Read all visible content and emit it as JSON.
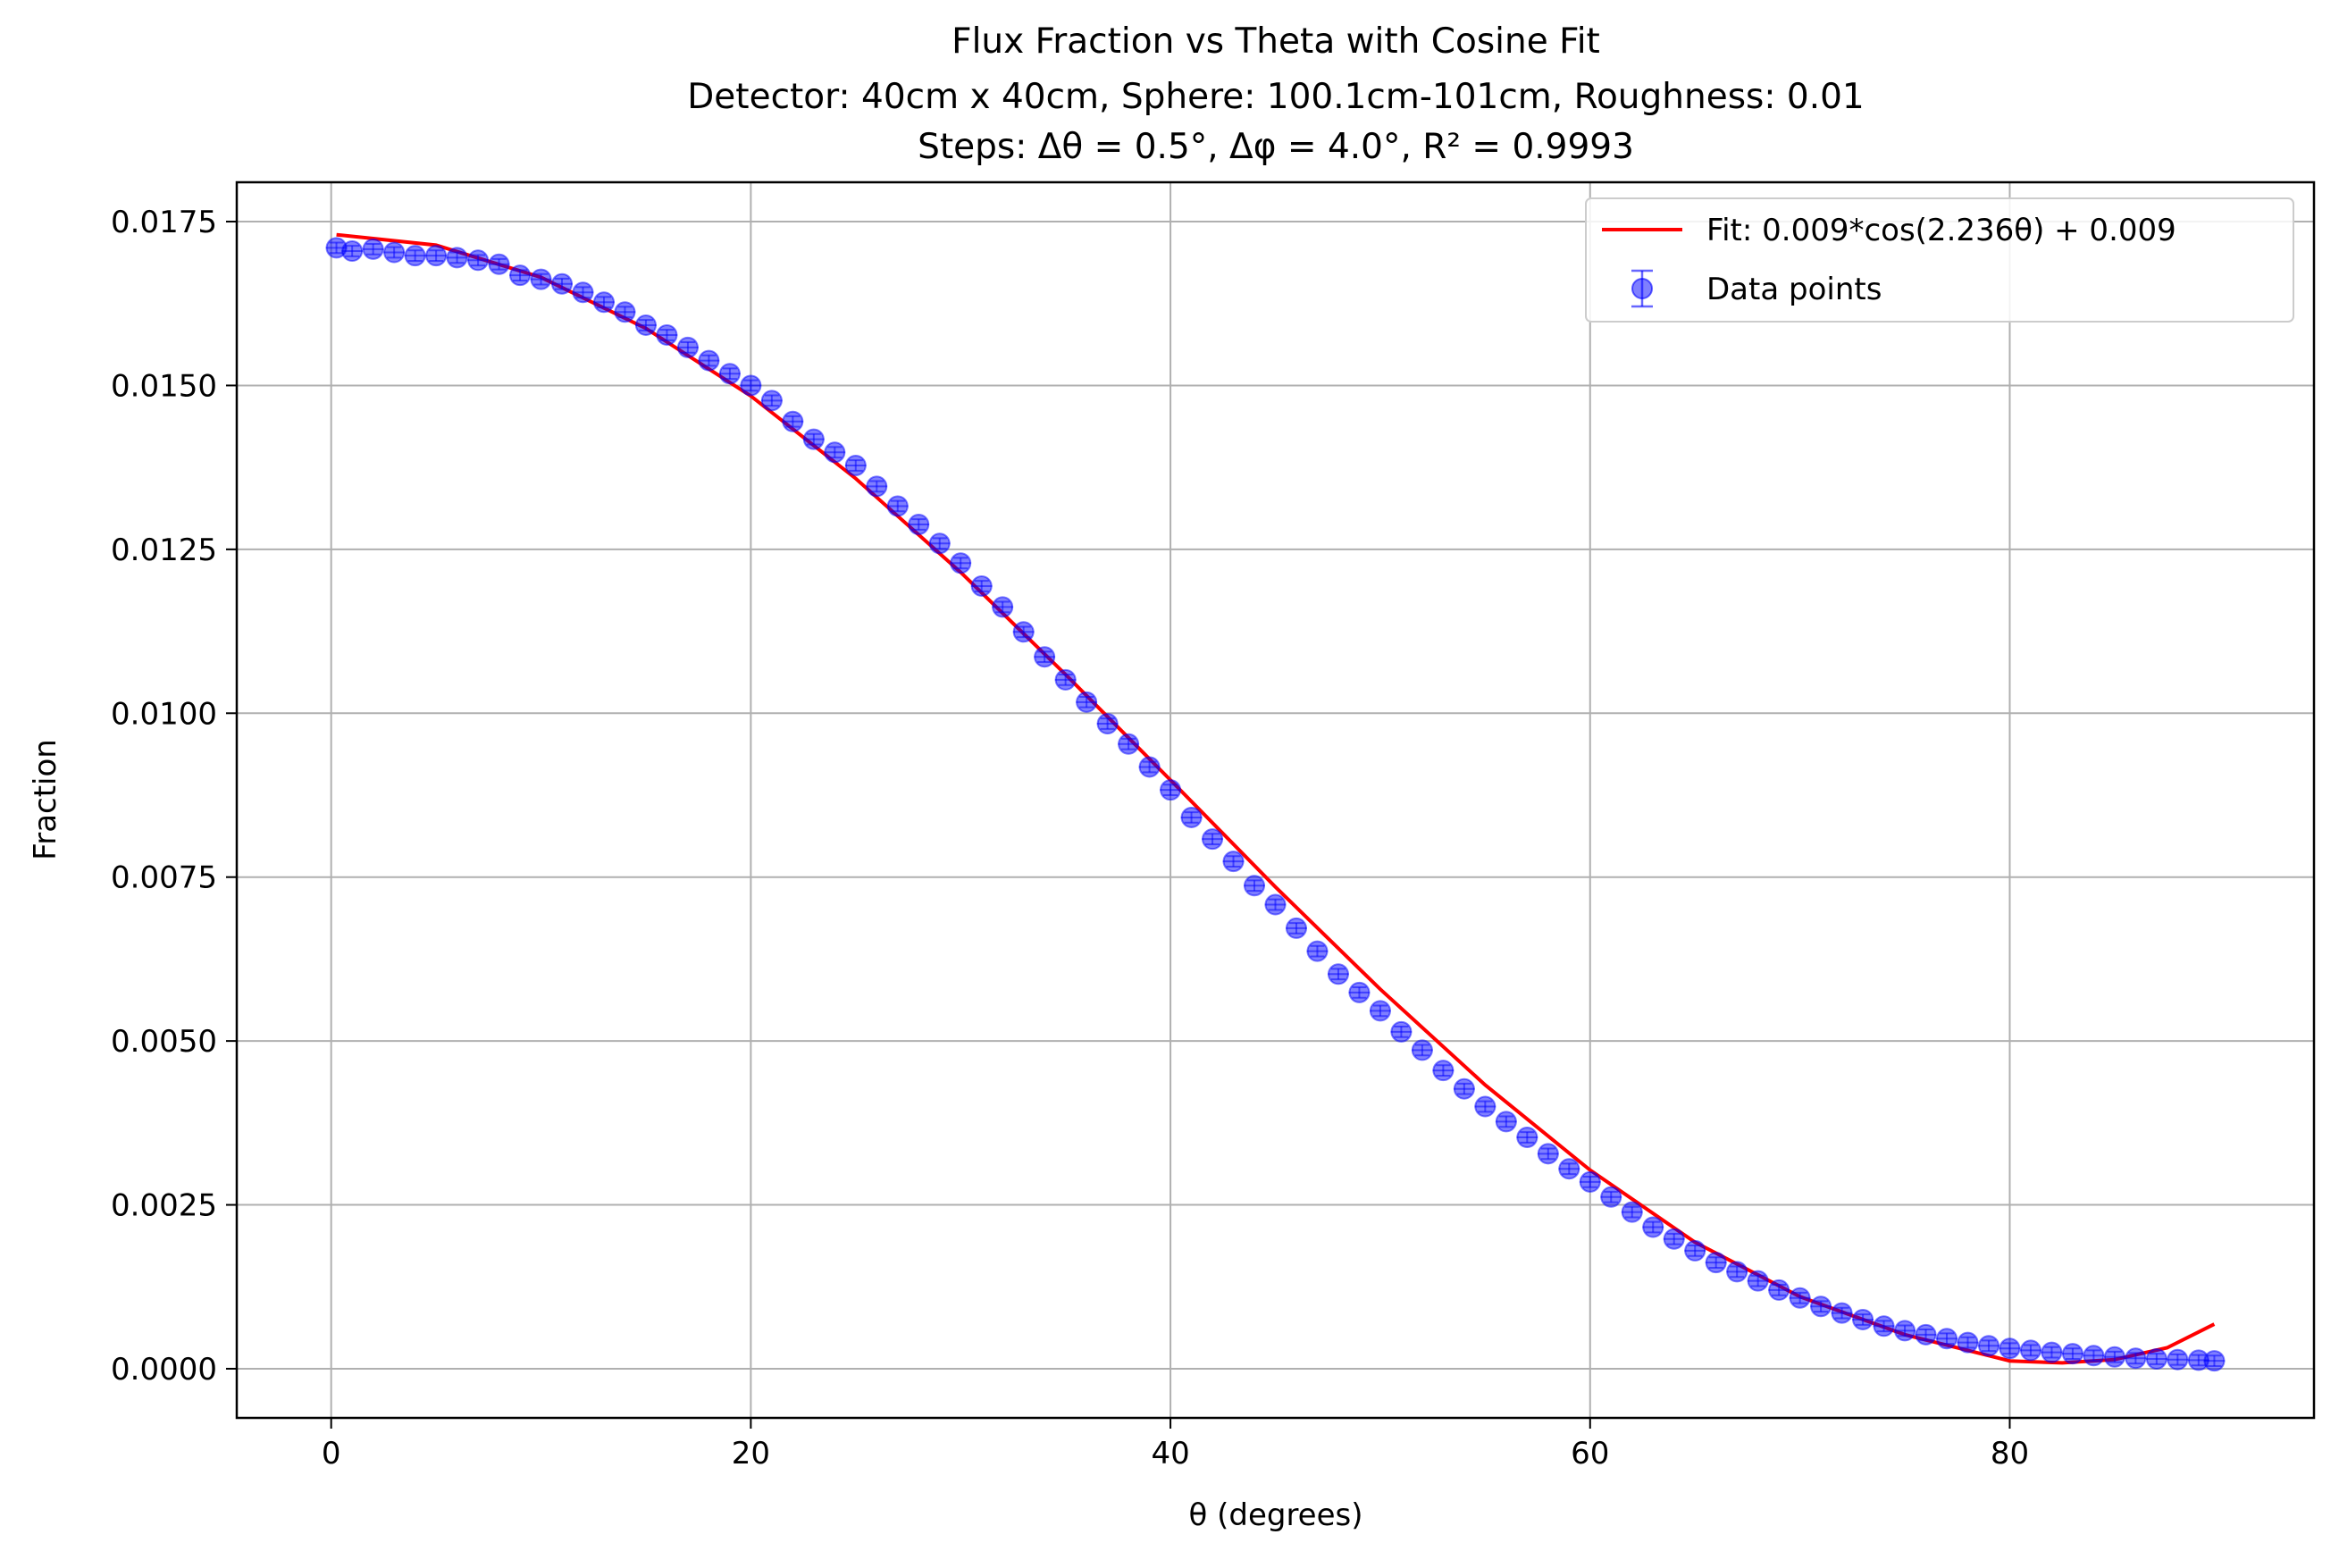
{
  "chart_data": {
    "type": "scatter",
    "title_lines": [
      "Flux Fraction vs Theta with Cosine Fit",
      "Detector: 40cm x 40cm, Sphere: 100.1cm-101cm, Roughness: 0.01",
      "Steps: Δθ = 0.5°, Δφ = 4.0°, R² = 0.9993"
    ],
    "xlabel": "θ (degrees)",
    "ylabel": "Fraction",
    "xlim": [
      -4.5,
      94.5
    ],
    "ylim": [
      -0.00075,
      0.0181
    ],
    "x_ticks": [
      0,
      20,
      40,
      60,
      80
    ],
    "x_tick_labels": [
      "0",
      "20",
      "40",
      "60",
      "80"
    ],
    "y_ticks": [
      0.0,
      0.0025,
      0.005,
      0.0075,
      0.01,
      0.0125,
      0.015,
      0.0175
    ],
    "y_tick_labels": [
      "0.0000",
      "0.0025",
      "0.0050",
      "0.0075",
      "0.0100",
      "0.0125",
      "0.0150",
      "0.0175"
    ],
    "grid": true,
    "legend_position": "upper right",
    "colors": {
      "fit": "#ff0000",
      "points": "#0000ff",
      "grid": "#b0b0b0"
    },
    "series": [
      {
        "name": "Fit: 0.009*cos(2.236θ) + 0.009",
        "kind": "line",
        "x": [
          0.25,
          5,
          10,
          15,
          20,
          25,
          30,
          35,
          40,
          45,
          50,
          55,
          60,
          65,
          70,
          75,
          80,
          82.5,
          85,
          87.5,
          89.75
        ],
        "y": [
          0.0173,
          0.01714,
          0.01665,
          0.01587,
          0.01484,
          0.01358,
          0.01215,
          0.01059,
          0.00898,
          0.00735,
          0.00579,
          0.00433,
          0.00303,
          0.00193,
          0.0011,
          0.00052,
          0.00012,
          9e-05,
          0.00014,
          0.00032,
          0.00068
        ]
      },
      {
        "name": "Data points",
        "kind": "errorbar",
        "x": [
          0.25,
          1,
          2,
          3,
          4,
          5,
          6,
          7,
          8,
          9,
          10,
          11,
          12,
          13,
          14,
          15,
          16,
          17,
          18,
          19,
          20,
          21,
          22,
          23,
          24,
          25,
          26,
          27,
          28,
          29,
          30,
          31,
          32,
          33,
          34,
          35,
          36,
          37,
          38,
          39,
          40,
          41,
          42,
          43,
          44,
          45,
          46,
          47,
          48,
          49,
          50,
          51,
          52,
          53,
          54,
          55,
          56,
          57,
          58,
          59,
          60,
          61,
          62,
          63,
          64,
          65,
          66,
          67,
          68,
          69,
          70,
          71,
          72,
          73,
          74,
          75,
          76,
          77,
          78,
          79,
          80,
          81,
          82,
          83,
          84,
          85,
          86,
          87,
          88,
          89,
          89.75
        ],
        "y": [
          0.0171,
          0.01705,
          0.01708,
          0.01703,
          0.01698,
          0.01698,
          0.01695,
          0.01691,
          0.01685,
          0.01668,
          0.01662,
          0.01655,
          0.01642,
          0.01627,
          0.01612,
          0.01592,
          0.01577,
          0.01558,
          0.01538,
          0.01518,
          0.015,
          0.01477,
          0.01445,
          0.01418,
          0.01398,
          0.01378,
          0.01346,
          0.01316,
          0.01288,
          0.01259,
          0.01229,
          0.01194,
          0.01162,
          0.01124,
          0.01086,
          0.01051,
          0.01017,
          0.00984,
          0.00953,
          0.00918,
          0.00883,
          0.00841,
          0.00808,
          0.00774,
          0.00737,
          0.00708,
          0.00672,
          0.00637,
          0.00602,
          0.00574,
          0.00546,
          0.00514,
          0.00486,
          0.00455,
          0.00427,
          0.004,
          0.00377,
          0.00353,
          0.00328,
          0.00305,
          0.00285,
          0.00262,
          0.00239,
          0.00216,
          0.00198,
          0.0018,
          0.00162,
          0.00148,
          0.00134,
          0.0012,
          0.00108,
          0.00095,
          0.00085,
          0.00075,
          0.00065,
          0.00058,
          0.00052,
          0.00046,
          0.0004,
          0.00035,
          0.00031,
          0.00028,
          0.00025,
          0.00023,
          0.0002,
          0.00018,
          0.00016,
          0.00015,
          0.00014,
          0.00013,
          0.00012
        ],
        "xerr": 0.5,
        "yerr": 8e-05
      }
    ]
  }
}
